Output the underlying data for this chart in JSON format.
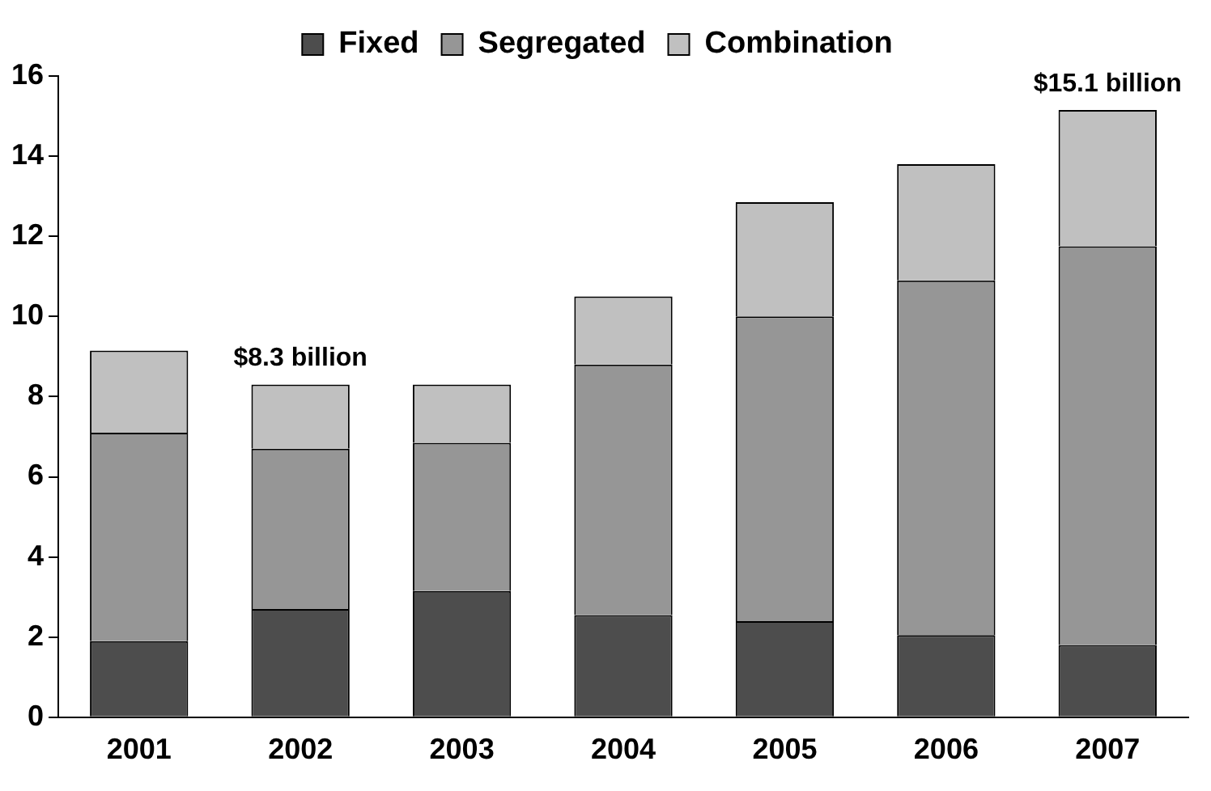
{
  "chart_data": {
    "type": "bar",
    "stacked": true,
    "categories": [
      "2001",
      "2002",
      "2003",
      "2004",
      "2005",
      "2006",
      "2007"
    ],
    "series": [
      {
        "name": "Fixed",
        "color": "#4d4d4d",
        "values": [
          1.9,
          2.7,
          3.15,
          2.55,
          2.4,
          2.05,
          1.8
        ]
      },
      {
        "name": "Segregated",
        "color": "#969696",
        "values": [
          5.2,
          4.0,
          3.7,
          6.25,
          7.6,
          8.85,
          9.95
        ]
      },
      {
        "name": "Combination",
        "color": "#c0c0c0",
        "values": [
          2.05,
          1.6,
          1.45,
          1.7,
          2.85,
          2.9,
          3.4
        ]
      }
    ],
    "ylim": [
      0,
      16
    ],
    "yticks": [
      0,
      2,
      4,
      6,
      8,
      10,
      12,
      14,
      16
    ],
    "grid": false,
    "legend": "top",
    "annotations": [
      {
        "text": "$8.3 billion",
        "x": "2002",
        "y": 8.3
      },
      {
        "text": "$15.1 billion",
        "x": "2007",
        "y": 15.15
      }
    ]
  }
}
